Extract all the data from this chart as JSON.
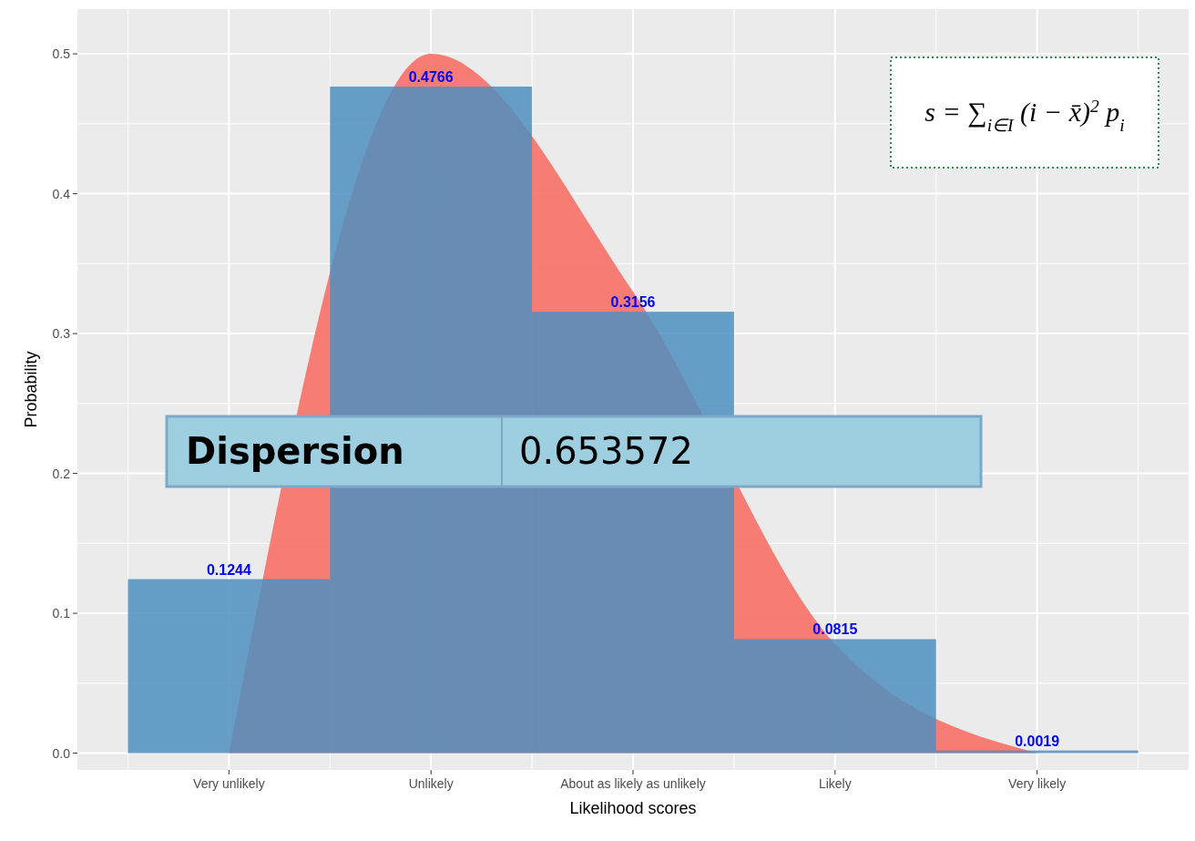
{
  "chart_data": {
    "type": "bar",
    "xlabel": "Likelihood scores",
    "ylabel": "Probability",
    "categories": [
      "Very unlikely",
      "Unlikely",
      "About as likely as unlikely",
      "Likely",
      "Very likely"
    ],
    "ylim": [
      -0.012,
      0.532
    ],
    "yticks": [
      {
        "value": 0,
        "label": "0.0"
      },
      0.1,
      0.2,
      0.3,
      0.4,
      0.5
    ],
    "grid": true,
    "series": [
      {
        "type": "area",
        "color": "#f8766d",
        "values": [
          0,
          0.5,
          0.33,
          0.078,
          0
        ]
      },
      {
        "color": "#4f8fc0",
        "values": [
          0.1244,
          0.4766,
          0.3156,
          0.0815,
          0.0019
        ],
        "value_labels": [
          "0.1244",
          "0.4766",
          "0.3156",
          "0.0815",
          "0.0019"
        ]
      }
    ],
    "annotations": [
      "Dispersion",
      "0.653572",
      "s = ∑$_{i∈I}$ (i − x̄)$^{2}$ p$_{i}$"
    ]
  }
}
